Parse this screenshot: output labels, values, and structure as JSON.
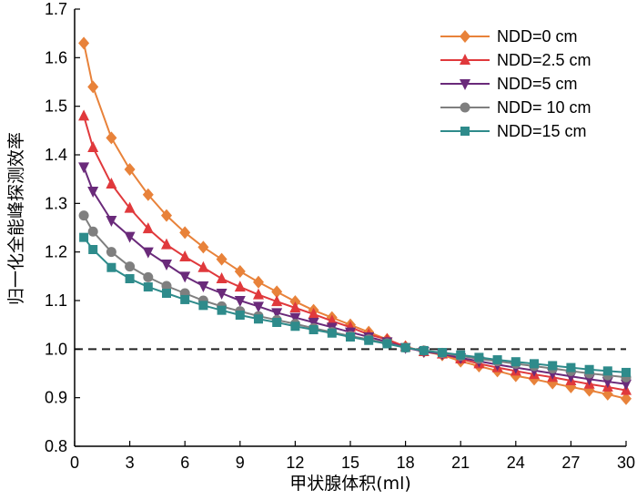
{
  "chart_data": {
    "type": "line",
    "title": "",
    "xlabel": "甲状腺体积(ml)",
    "ylabel": "归一化全能峰探测效率",
    "xlim": [
      0,
      30
    ],
    "ylim": [
      0.8,
      1.7
    ],
    "xticks": [
      0,
      3,
      6,
      9,
      12,
      15,
      18,
      21,
      24,
      27,
      30
    ],
    "yticks": [
      0.8,
      0.9,
      1.0,
      1.1,
      1.2,
      1.3,
      1.4,
      1.5,
      1.6,
      1.7
    ],
    "ytick_labels": [
      "0.8",
      "0.9",
      "1.0",
      "1.1",
      "1.2",
      "1.3",
      "1.4",
      "1.5",
      "1.6",
      "1.7"
    ],
    "grid": false,
    "legend_position": "top-right",
    "reference_line": {
      "y": 1.0,
      "style": "dashed",
      "color": "#222222"
    },
    "x": [
      0.5,
      1,
      2,
      3,
      4,
      5,
      6,
      7,
      8,
      9,
      10,
      11,
      12,
      13,
      14,
      15,
      16,
      17,
      18,
      19,
      20,
      21,
      22,
      23,
      24,
      25,
      26,
      27,
      28,
      29,
      30
    ],
    "series": [
      {
        "name": "NDD=0 cm",
        "color": "#E8823A",
        "marker": "diamond",
        "values": [
          1.63,
          1.54,
          1.435,
          1.37,
          1.318,
          1.275,
          1.24,
          1.21,
          1.185,
          1.16,
          1.138,
          1.118,
          1.098,
          1.08,
          1.065,
          1.05,
          1.035,
          1.02,
          1.005,
          0.995,
          0.988,
          0.975,
          0.965,
          0.955,
          0.945,
          0.938,
          0.93,
          0.922,
          0.915,
          0.907,
          0.898
        ]
      },
      {
        "name": "NDD=2.5 cm",
        "color": "#E0393C",
        "marker": "triangle-up",
        "values": [
          1.48,
          1.415,
          1.34,
          1.29,
          1.248,
          1.215,
          1.19,
          1.168,
          1.145,
          1.128,
          1.112,
          1.098,
          1.085,
          1.072,
          1.058,
          1.045,
          1.03,
          1.02,
          1.005,
          0.995,
          0.99,
          0.98,
          0.97,
          0.962,
          0.955,
          0.948,
          0.942,
          0.935,
          0.928,
          0.922,
          0.915
        ]
      },
      {
        "name": "NDD=5 cm",
        "color": "#6A2A7A",
        "marker": "triangle-down",
        "values": [
          1.375,
          1.325,
          1.265,
          1.232,
          1.2,
          1.175,
          1.15,
          1.13,
          1.115,
          1.1,
          1.088,
          1.075,
          1.065,
          1.055,
          1.045,
          1.035,
          1.025,
          1.015,
          1.003,
          0.995,
          0.99,
          0.982,
          0.975,
          0.968,
          0.962,
          0.956,
          0.95,
          0.944,
          0.938,
          0.933,
          0.928
        ]
      },
      {
        "name": "NDD= 10 cm",
        "color": "#7F7F7F",
        "marker": "circle",
        "values": [
          1.275,
          1.242,
          1.2,
          1.17,
          1.148,
          1.13,
          1.115,
          1.1,
          1.088,
          1.078,
          1.068,
          1.06,
          1.052,
          1.043,
          1.035,
          1.027,
          1.02,
          1.012,
          1.003,
          0.997,
          0.992,
          0.986,
          0.98,
          0.975,
          0.97,
          0.965,
          0.96,
          0.955,
          0.95,
          0.946,
          0.942
        ]
      },
      {
        "name": "NDD=15 cm",
        "color": "#2E8B8B",
        "marker": "square",
        "values": [
          1.23,
          1.205,
          1.168,
          1.145,
          1.128,
          1.115,
          1.102,
          1.09,
          1.08,
          1.07,
          1.062,
          1.055,
          1.047,
          1.04,
          1.033,
          1.025,
          1.018,
          1.011,
          1.003,
          0.997,
          0.993,
          0.988,
          0.983,
          0.978,
          0.974,
          0.97,
          0.966,
          0.962,
          0.958,
          0.955,
          0.952
        ]
      }
    ]
  }
}
